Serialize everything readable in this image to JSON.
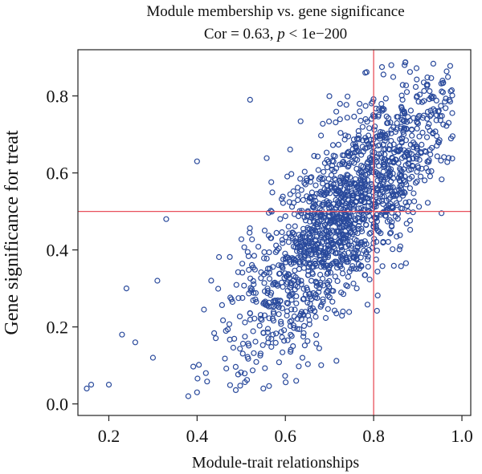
{
  "chart_data": {
    "type": "scatter",
    "title_line1": "Module membership vs. gene significance",
    "title_line2_prefix": "Cor = 0.63, ",
    "title_line2_p": "p",
    "title_line2_suffix": " < 1e−200",
    "xlabel": "Module-trait relationships",
    "ylabel": "Gene significance for treat",
    "xlim": [
      0.13,
      1.02
    ],
    "ylim": [
      -0.03,
      0.92
    ],
    "x_ticks": [
      0.2,
      0.4,
      0.6,
      0.8,
      1.0
    ],
    "x_tick_labels": [
      "0.2",
      "0.4",
      "0.6",
      "0.8",
      "1.0"
    ],
    "y_ticks": [
      0.0,
      0.2,
      0.4,
      0.6,
      0.8
    ],
    "y_tick_labels": [
      "0.0",
      "0.2",
      "0.4",
      "0.6",
      "0.8"
    ],
    "reference_lines": {
      "x": 0.8,
      "y": 0.5,
      "color": "#e8505b"
    },
    "marker_color": "#2a4a9c",
    "grid": false,
    "correlation": 0.63,
    "n_points": 1600,
    "distribution": {
      "x_center": 0.74,
      "x_spread": 0.12,
      "y_slope": 1.15,
      "y_intercept": -0.35,
      "y_noise": 0.11,
      "x_range": [
        0.15,
        0.98
      ],
      "y_range": [
        0.02,
        0.89
      ]
    },
    "outliers": [
      {
        "x": 0.15,
        "y": 0.04
      },
      {
        "x": 0.16,
        "y": 0.05
      },
      {
        "x": 0.2,
        "y": 0.05
      },
      {
        "x": 0.23,
        "y": 0.18
      },
      {
        "x": 0.24,
        "y": 0.3
      },
      {
        "x": 0.26,
        "y": 0.16
      },
      {
        "x": 0.3,
        "y": 0.12
      },
      {
        "x": 0.31,
        "y": 0.32
      },
      {
        "x": 0.33,
        "y": 0.48
      },
      {
        "x": 0.38,
        "y": 0.02
      },
      {
        "x": 0.4,
        "y": 0.03
      },
      {
        "x": 0.4,
        "y": 0.63
      },
      {
        "x": 0.52,
        "y": 0.79
      },
      {
        "x": 0.87,
        "y": 0.88
      },
      {
        "x": 0.84,
        "y": 0.88
      },
      {
        "x": 0.97,
        "y": 0.73
      },
      {
        "x": 0.42,
        "y": 0.08
      },
      {
        "x": 0.55,
        "y": 0.04
      }
    ]
  }
}
